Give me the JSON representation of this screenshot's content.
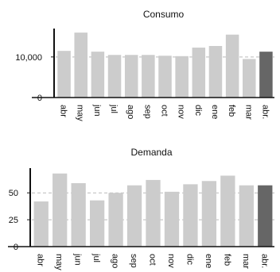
{
  "colors": {
    "bar": "#cccccc",
    "bar_highlight": "#666666",
    "axis": "#111111",
    "grid": "#bbbbbb"
  },
  "chart_data": [
    {
      "type": "bar",
      "title": "Consumo",
      "categories": [
        "abr",
        "may",
        "jun",
        "jul",
        "ago",
        "sep",
        "oct",
        "nov",
        "dic",
        "ene",
        "feb",
        "mar",
        "abr."
      ],
      "values": [
        11500,
        16000,
        11300,
        10500,
        10500,
        10500,
        10300,
        10200,
        12300,
        12700,
        15500,
        9500,
        11300
      ],
      "highlight_index": 12,
      "yticks": [
        0,
        10000
      ],
      "ytick_labels": [
        "0",
        "10,000"
      ],
      "ylim": [
        0,
        17000
      ],
      "grid": "dashed at y ticks"
    },
    {
      "type": "bar",
      "title": "Demanda",
      "categories": [
        "abr",
        "may",
        "jun",
        "jul",
        "ago",
        "sep",
        "oct",
        "nov",
        "dic",
        "ene",
        "feb",
        "mar",
        "abr."
      ],
      "values": [
        42,
        68,
        59,
        43,
        50,
        57,
        62,
        51,
        58,
        61,
        66,
        57,
        57
      ],
      "highlight_index": 12,
      "yticks": [
        0,
        25,
        50
      ],
      "ytick_labels": [
        "0",
        "25",
        "50"
      ],
      "ylim": [
        0,
        73
      ],
      "grid": "dashed at y ticks"
    }
  ]
}
